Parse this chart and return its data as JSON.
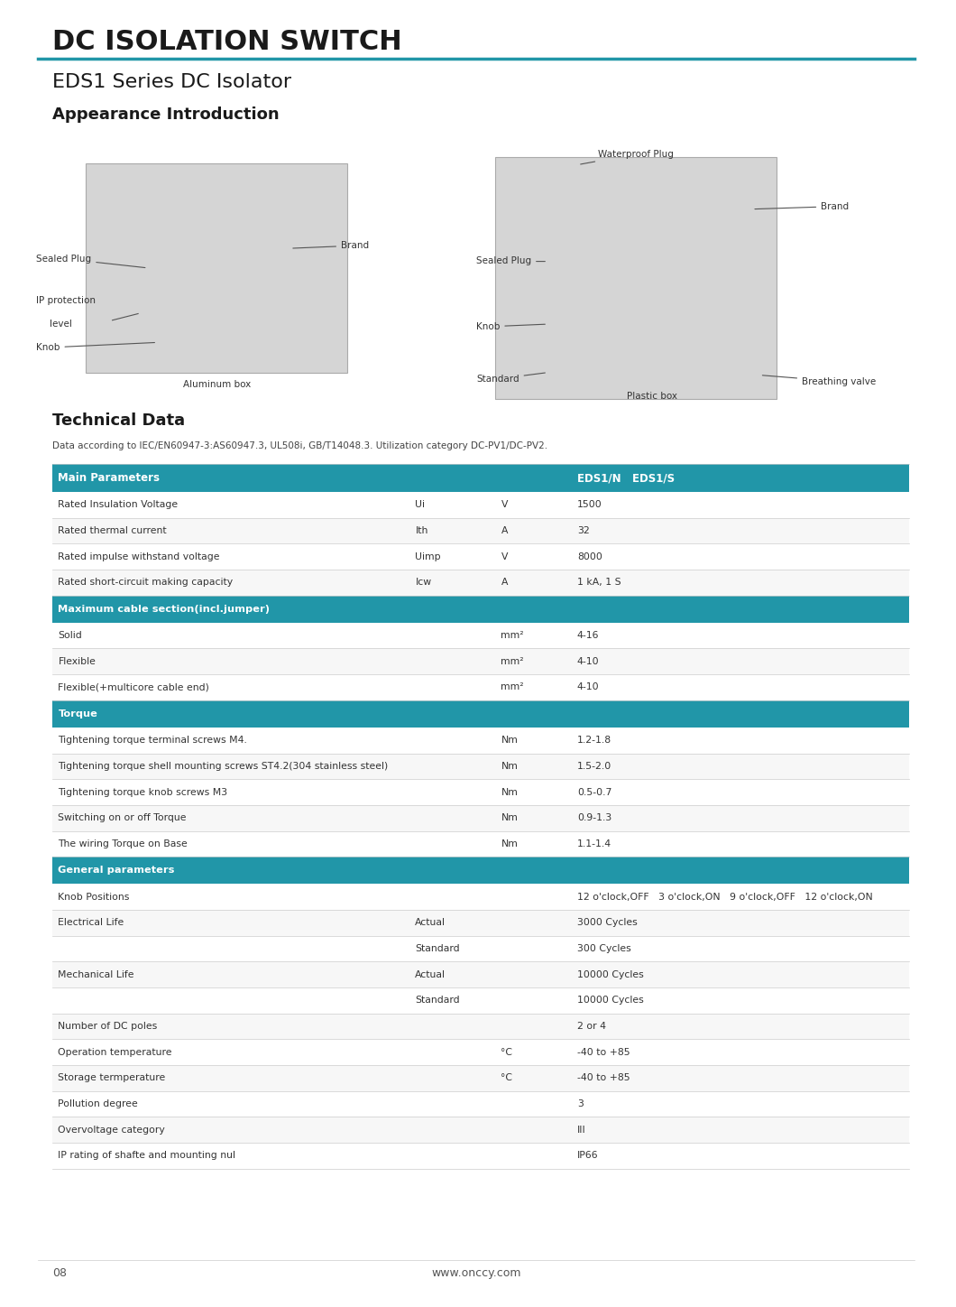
{
  "page_title": "DC ISOLATION SWITCH",
  "title_underline_color": "#2196a8",
  "section1_title": "EDS1 Series DC Isolator",
  "section2_title": "Appearance Introduction",
  "section3_title": "Technical Data",
  "tech_data_subtitle": "Data according to IEC/EN60947-3:AS60947.3, UL508i, GB/T14048.3. Utilization category DC-PV1/DC-PV2.",
  "bg_color": "#ffffff",
  "text_color": "#333333",
  "header_bg": "#2196a8",
  "header_text": "#ffffff",
  "row_bg1": "#ffffff",
  "row_bg2": "#f5f5f5",
  "section_bg": "#2196a8",
  "table_rows": [
    [
      "Rated Insulation Voltage",
      "Ui",
      "V",
      "1500"
    ],
    [
      "Rated thermal current",
      "Ith",
      "A",
      "32"
    ],
    [
      "Rated impulse withstand voltage",
      "Uimp",
      "V",
      "8000"
    ],
    [
      "Rated short-circuit making capacity",
      "Icw",
      "A",
      "1 kA, 1 S"
    ],
    [
      "SECTION:Maximum cable section(incl.jumper)",
      "",
      "",
      ""
    ],
    [
      "Solid",
      "",
      "mm²",
      "4-16"
    ],
    [
      "Flexible",
      "",
      "mm²",
      "4-10"
    ],
    [
      "Flexible(+multicore cable end)",
      "",
      "mm²",
      "4-10"
    ],
    [
      "SECTION:Torque",
      "",
      "",
      ""
    ],
    [
      "Tightening torque terminal screws M4.",
      "",
      "Nm",
      "1.2-1.8"
    ],
    [
      "Tightening torque shell mounting screws ST4.2(304 stainless steel)",
      "",
      "Nm",
      "1.5-2.0"
    ],
    [
      "Tightening torque knob screws M3",
      "",
      "Nm",
      "0.5-0.7"
    ],
    [
      "Switching on or off Torque",
      "",
      "Nm",
      "0.9-1.3"
    ],
    [
      "The wiring Torque on Base",
      "",
      "Nm",
      "1.1-1.4"
    ],
    [
      "SECTION:General parameters",
      "",
      "",
      ""
    ],
    [
      "Knob Positions",
      "",
      "",
      "12 o'clock,OFF   3 o'clock,ON   9 o'clock,OFF   12 o'clock,ON"
    ],
    [
      "Electrical Life",
      "Actual",
      "",
      "3000 Cycles"
    ],
    [
      "",
      "Standard",
      "",
      "300 Cycles"
    ],
    [
      "Mechanical Life",
      "Actual",
      "",
      "10000 Cycles"
    ],
    [
      "",
      "Standard",
      "",
      "10000 Cycles"
    ],
    [
      "Number of DC poles",
      "",
      "",
      "2 or 4"
    ],
    [
      "Operation temperature",
      "",
      "°C",
      "-40 to +85"
    ],
    [
      "Storage termperature",
      "",
      "°C",
      "-40 to +85"
    ],
    [
      "Pollution degree",
      "",
      "",
      "3"
    ],
    [
      "Overvoltage category",
      "",
      "",
      "III"
    ],
    [
      "IP rating of shafte and mounting nul",
      "",
      "",
      "IP66"
    ]
  ],
  "footer_page": "08",
  "footer_url": "www.onccy.com"
}
